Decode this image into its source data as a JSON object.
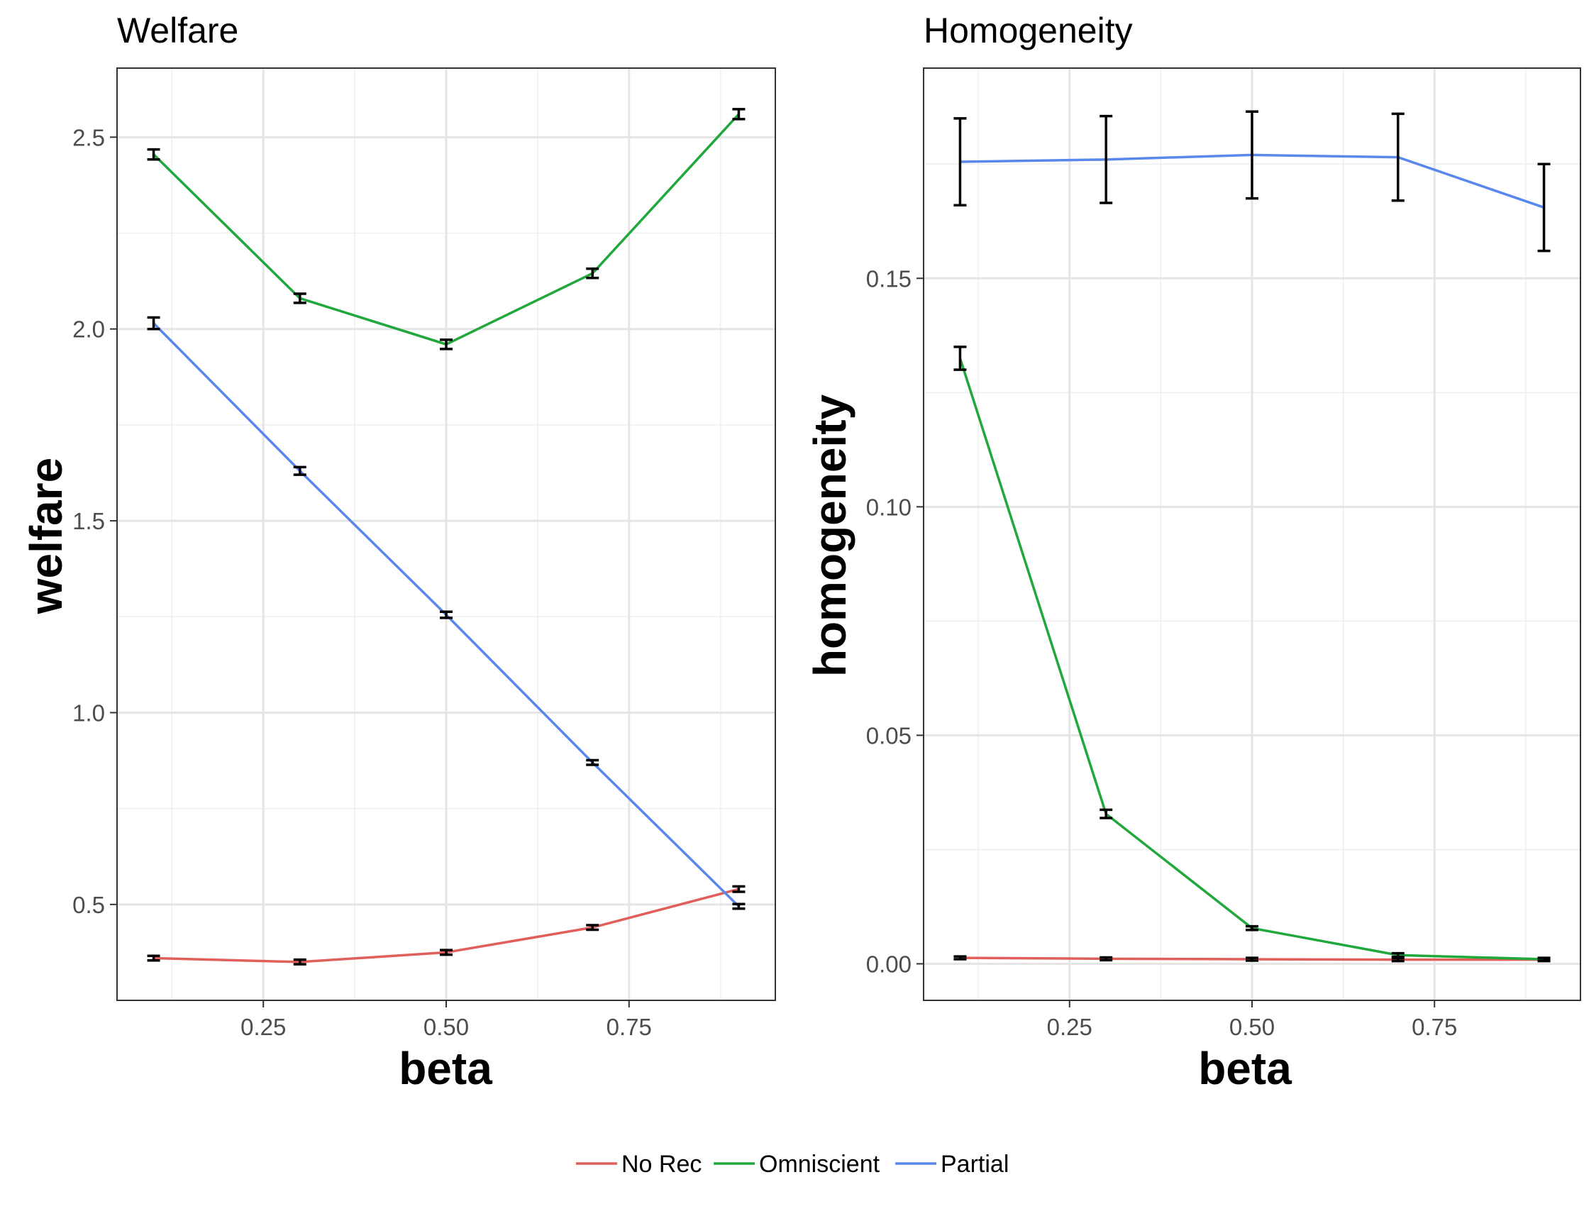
{
  "chart_data": [
    {
      "type": "line",
      "title": "Welfare",
      "xlabel": "beta",
      "ylabel": "welfare",
      "x": [
        0.1,
        0.3,
        0.5,
        0.7,
        0.9
      ],
      "xlim": [
        0.05,
        0.95
      ],
      "ylim": [
        0.25,
        2.68
      ],
      "x_ticks": [
        0.25,
        0.5,
        0.75
      ],
      "x_tick_labels": [
        "0.25",
        "0.50",
        "0.75"
      ],
      "y_ticks": [
        0.5,
        1.0,
        1.5,
        2.0,
        2.5
      ],
      "y_tick_labels": [
        "0.5",
        "1.0",
        "1.5",
        "2.0",
        "2.5"
      ],
      "grid": true,
      "series": [
        {
          "name": "No Rec",
          "color": "#e15f5a",
          "values": [
            0.36,
            0.35,
            0.375,
            0.44,
            0.54
          ],
          "err": [
            0.006,
            0.006,
            0.006,
            0.006,
            0.007
          ]
        },
        {
          "name": "Omniscient",
          "color": "#20a83c",
          "values": [
            2.455,
            2.08,
            1.96,
            2.145,
            2.56
          ],
          "err": [
            0.013,
            0.012,
            0.012,
            0.012,
            0.013
          ]
        },
        {
          "name": "Partial",
          "color": "#5888ec",
          "values": [
            2.015,
            1.63,
            1.255,
            0.87,
            0.495
          ],
          "err": [
            0.015,
            0.01,
            0.008,
            0.006,
            0.006
          ]
        }
      ]
    },
    {
      "type": "line",
      "title": "Homogeneity",
      "xlabel": "beta",
      "ylabel": "homogeneity",
      "x": [
        0.1,
        0.3,
        0.5,
        0.7,
        0.9
      ],
      "xlim": [
        0.05,
        0.95
      ],
      "ylim": [
        -0.008,
        0.196
      ],
      "x_ticks": [
        0.25,
        0.5,
        0.75
      ],
      "x_tick_labels": [
        "0.25",
        "0.50",
        "0.75"
      ],
      "y_ticks": [
        0.0,
        0.05,
        0.1,
        0.15
      ],
      "y_tick_labels": [
        "0.00",
        "0.05",
        "0.10",
        "0.15"
      ],
      "grid": true,
      "series": [
        {
          "name": "No Rec",
          "color": "#e15f5a",
          "values": [
            0.0013,
            0.0011,
            0.001,
            0.0009,
            0.0009
          ],
          "err": [
            0.0003,
            0.0003,
            0.0003,
            0.0003,
            0.0003
          ]
        },
        {
          "name": "Omniscient",
          "color": "#20a83c",
          "values": [
            0.1325,
            0.0328,
            0.0078,
            0.0019,
            0.001
          ],
          "err": [
            0.0025,
            0.0009,
            0.0004,
            0.0004,
            0.0003
          ]
        },
        {
          "name": "Partial",
          "color": "#5888ec",
          "values": [
            0.1755,
            0.176,
            0.177,
            0.1765,
            0.1655
          ],
          "err": [
            0.0095,
            0.0095,
            0.0095,
            0.0095,
            0.0095
          ]
        }
      ]
    }
  ],
  "legend": {
    "placement": "bottom",
    "items": [
      {
        "label": "No Rec",
        "color": "#e15f5a"
      },
      {
        "label": "Omniscient",
        "color": "#20a83c"
      },
      {
        "label": "Partial",
        "color": "#5888ec"
      }
    ]
  }
}
